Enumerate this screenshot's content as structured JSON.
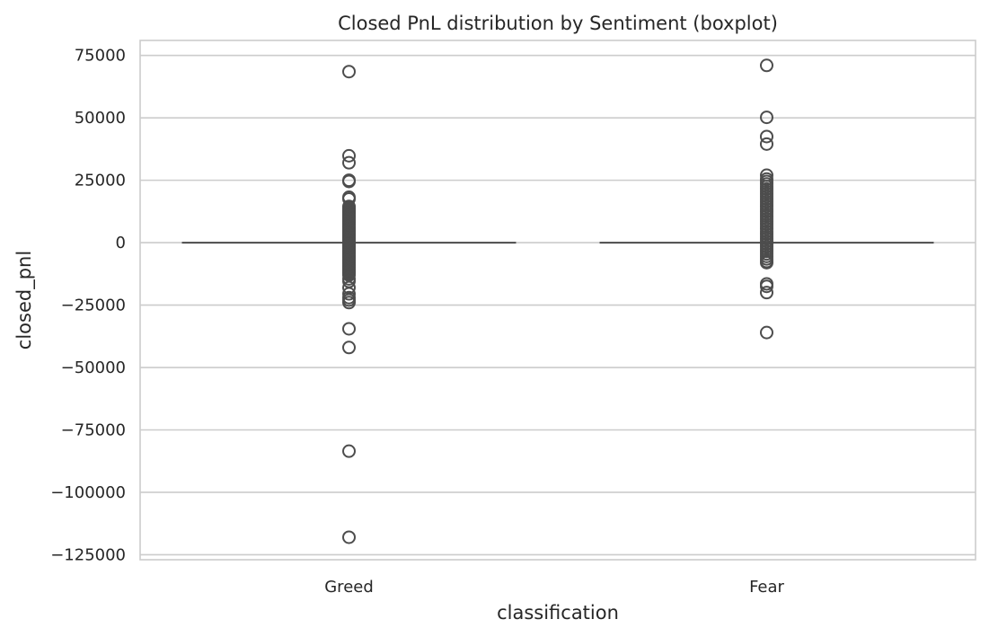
{
  "chart_data": {
    "type": "box",
    "title": "Closed PnL distribution by Sentiment (boxplot)",
    "xlabel": "classification",
    "ylabel": "closed_pnl",
    "categories": [
      "Greed",
      "Fear"
    ],
    "ylim": [
      -127000,
      81000
    ],
    "yticks": [
      75000,
      50000,
      25000,
      0,
      -25000,
      -50000,
      -75000,
      -100000,
      -125000
    ],
    "ytick_labels": [
      "75000",
      "50000",
      "25000",
      "0",
      "−25000",
      "−50000",
      "−75000",
      "−100000",
      "−125000"
    ],
    "grid": true,
    "colors": {
      "box_line": "#4d4d4d",
      "grid": "#cccccc",
      "text": "#262626"
    },
    "boxes": [
      {
        "category": "Greed",
        "median": 0,
        "q1": 0,
        "q3": 0,
        "whisker_low": 0,
        "whisker_high": 0,
        "fliers": [
          68500,
          34800,
          32000,
          25000,
          24500,
          18200,
          17500,
          14500,
          14000,
          13500,
          13000,
          12500,
          12000,
          11500,
          11000,
          10500,
          10000,
          9500,
          9000,
          8500,
          8000,
          7500,
          7000,
          6500,
          6000,
          5500,
          5000,
          4500,
          4000,
          3500,
          3000,
          2500,
          2000,
          1500,
          1000,
          500,
          -500,
          -1000,
          -1500,
          -2000,
          -2500,
          -3000,
          -3500,
          -4000,
          -4500,
          -5000,
          -5500,
          -6000,
          -6500,
          -7000,
          -7500,
          -8000,
          -8500,
          -9000,
          -9500,
          -10000,
          -10500,
          -11000,
          -11500,
          -12000,
          -12500,
          -13000,
          -14500,
          -15500,
          -18000,
          -20500,
          -22000,
          -23000,
          -24000,
          -34500,
          -42000,
          -83500,
          -118000
        ]
      },
      {
        "category": "Fear",
        "median": 0,
        "q1": 0,
        "q3": 0,
        "whisker_low": 0,
        "whisker_high": 0,
        "fliers": [
          71000,
          50200,
          42500,
          39500,
          27000,
          25500,
          24500,
          23500,
          22500,
          21500,
          20500,
          19500,
          18500,
          17500,
          16500,
          15500,
          14500,
          13500,
          12500,
          11500,
          10500,
          9500,
          8500,
          7500,
          6500,
          5500,
          4500,
          3500,
          2500,
          1500,
          500,
          -500,
          -1500,
          -2500,
          -3500,
          -4500,
          -5500,
          -6500,
          -7500,
          -8000,
          -16500,
          -17500,
          -20000,
          -36000
        ]
      }
    ]
  }
}
